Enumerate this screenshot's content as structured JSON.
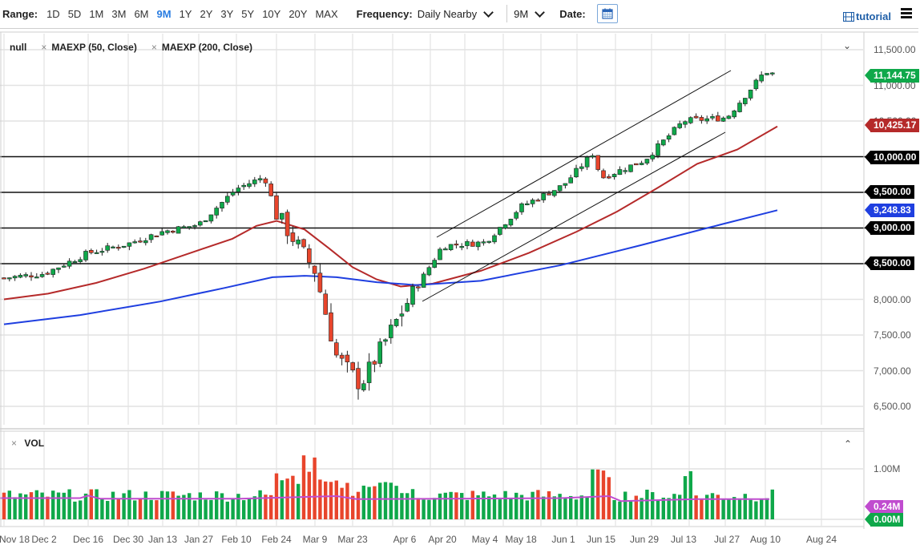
{
  "toolbar": {
    "range_label": "Range:",
    "ranges": [
      "1D",
      "5D",
      "1M",
      "3M",
      "6M",
      "9M",
      "1Y",
      "2Y",
      "3Y",
      "5Y",
      "10Y",
      "20Y",
      "MAX"
    ],
    "active_range": "9M",
    "frequency_label": "Frequency:",
    "frequency_value": "Daily Nearby",
    "period_value": "9M",
    "date_label": "Date:",
    "tutorial_label": "tutorial"
  },
  "legend": {
    "main": "null",
    "studies": [
      "MAEXP (50, Close)",
      "MAEXP (200, Close)"
    ],
    "volume": "VOL"
  },
  "colors": {
    "up": "#0fa84a",
    "down": "#e8452c",
    "ma50": "#b52a2a",
    "ma200": "#1f3fe0",
    "vol_ma": "#c04ccf",
    "last_price_tag": "#0fa84a",
    "ma50_tag": "#b52a2a",
    "ma200_tag": "#1f3fe0",
    "level_tag": "#000000",
    "vol_ma_tag": "#c04ccf",
    "vol_zero_tag": "#0fa84a",
    "accent": "#2a7de1"
  },
  "chart_data": {
    "type": "candlestick",
    "title": "",
    "y_axis": {
      "ticks": [
        "11,500.00",
        "11,000.00",
        "10,500.00",
        "10,000.00",
        "9,500.00",
        "9,000.00",
        "8,500.00",
        "8,000.00",
        "7,500.00",
        "7,000.00",
        "6,500.00"
      ],
      "range": [
        6450,
        11650
      ]
    },
    "x_axis": {
      "ticks": [
        "Nov 18",
        "Dec 2",
        "Dec 16",
        "Dec 30",
        "Jan 13",
        "Jan 27",
        "Feb 10",
        "Feb 24",
        "Mar 9",
        "Mar 23",
        "Apr 6",
        "Apr 20",
        "May 4",
        "May 18",
        "Jun 1",
        "Jun 15",
        "Jun 29",
        "Jul 13",
        "Jul 27",
        "Aug 10",
        "Aug 24"
      ]
    },
    "price_tags": {
      "last": "11,144.75",
      "ma50": "10,425.17",
      "ma200": "9,248.83"
    },
    "horizontal_levels": [
      {
        "value": 10000,
        "label": "10,000.00"
      },
      {
        "value": 9500,
        "label": "9,500.00"
      },
      {
        "value": 9000,
        "label": "9,000.00"
      },
      {
        "value": 8500,
        "label": "8,500.00"
      }
    ],
    "trend_channel": {
      "upper": [
        [
          545,
          296
        ],
        [
          912,
          88
        ]
      ],
      "lower": [
        [
          527,
          376
        ],
        [
          905,
          165
        ]
      ]
    },
    "closes_sampled": [
      {
        "date": "Nov 18",
        "close": 8300
      },
      {
        "date": "Dec 2",
        "close": 8360
      },
      {
        "date": "Dec 16",
        "close": 8650
      },
      {
        "date": "Dec 30",
        "close": 8780
      },
      {
        "date": "Jan 13",
        "close": 8950
      },
      {
        "date": "Jan 27",
        "close": 9050
      },
      {
        "date": "Feb 10",
        "close": 9550
      },
      {
        "date": "Feb 19",
        "close": 9720
      },
      {
        "date": "Feb 24",
        "close": 9200
      },
      {
        "date": "Mar 9",
        "close": 8400
      },
      {
        "date": "Mar 16",
        "close": 7200
      },
      {
        "date": "Mar 23",
        "close": 6800
      },
      {
        "date": "Apr 6",
        "close": 7900
      },
      {
        "date": "Apr 20",
        "close": 8750
      },
      {
        "date": "May 4",
        "close": 8800
      },
      {
        "date": "May 18",
        "close": 9300
      },
      {
        "date": "Jun 1",
        "close": 9600
      },
      {
        "date": "Jun 8",
        "close": 10050
      },
      {
        "date": "Jun 15",
        "close": 9700
      },
      {
        "date": "Jun 29",
        "close": 9950
      },
      {
        "date": "Jul 13",
        "close": 10500
      },
      {
        "date": "Jul 27",
        "close": 10550
      },
      {
        "date": "Aug 10",
        "close": 11200
      },
      {
        "date": "Aug 12",
        "close": 11144.75
      }
    ],
    "ma50_tag_value": 10425.17,
    "ma200_tag_value": 9248.83,
    "volume": {
      "label": "VOL",
      "ticks": [
        "1.00M"
      ],
      "ma_tag": "0.24M",
      "zero_tag": "0.00M"
    },
    "grid": true
  }
}
